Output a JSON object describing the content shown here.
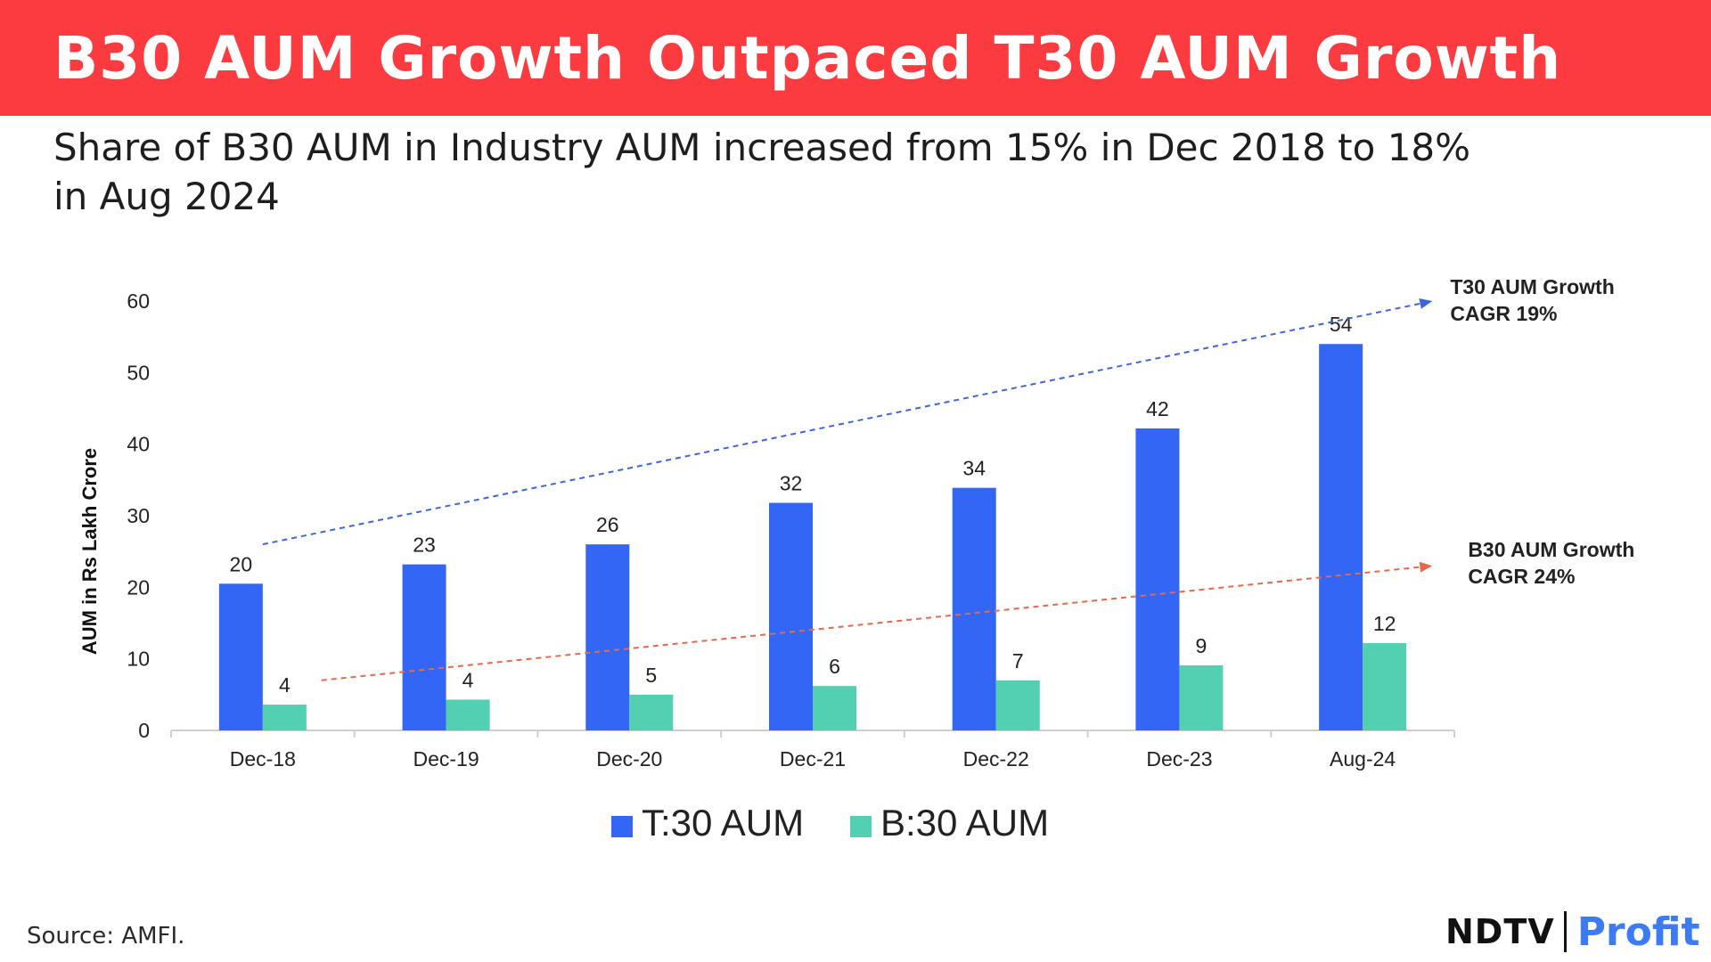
{
  "header": {
    "title": "B30 AUM Growth Outpaced T30 AUM Growth",
    "subtitle": "Share of B30 AUM in Industry AUM increased from 15% in Dec 2018 to 18% in Aug 2024"
  },
  "chart_data": {
    "type": "bar",
    "title": "",
    "xlabel": "",
    "ylabel": "AUM in Rs Lakh Crore",
    "ylim": [
      0,
      60
    ],
    "yticks": [
      0,
      10,
      20,
      30,
      40,
      50,
      60
    ],
    "grid": false,
    "legend_position": "bottom-center",
    "categories": [
      "Dec-18",
      "Dec-19",
      "Dec-20",
      "Dec-21",
      "Dec-22",
      "Dec-23",
      "Aug-24"
    ],
    "series": [
      {
        "name": "T:30 AUM",
        "color": "#3366f5",
        "values": [
          20.5,
          23.2,
          26,
          31.8,
          33.9,
          42.2,
          54
        ],
        "labels": [
          "20",
          "23",
          "26",
          "32",
          "34",
          "42",
          "54"
        ]
      },
      {
        "name": "B:30 AUM",
        "color": "#53cfb2",
        "values": [
          3.6,
          4.3,
          5,
          6.2,
          7,
          9.1,
          12.2
        ],
        "labels": [
          "4",
          "4",
          "5",
          "6",
          "7",
          "9",
          "12"
        ]
      }
    ],
    "trend_lines": [
      {
        "series": "T:30 AUM",
        "color": "#3f66d9",
        "start": {
          "category_index": 0,
          "value": 26
        },
        "end": {
          "category_index": 6.38,
          "value": 60
        },
        "annotation": [
          "T30 AUM Growth",
          "CAGR 19%"
        ]
      },
      {
        "series": "B:30 AUM",
        "color": "#e56a4c",
        "start": {
          "category_index": 0.32,
          "value": 7
        },
        "end": {
          "category_index": 6.38,
          "value": 23
        },
        "annotation": [
          "B30 AUM Growth",
          "CAGR 24%"
        ]
      }
    ]
  },
  "footer": {
    "source": "Source: AMFI.",
    "logo_left": "NDTV",
    "logo_right": "Profit"
  }
}
